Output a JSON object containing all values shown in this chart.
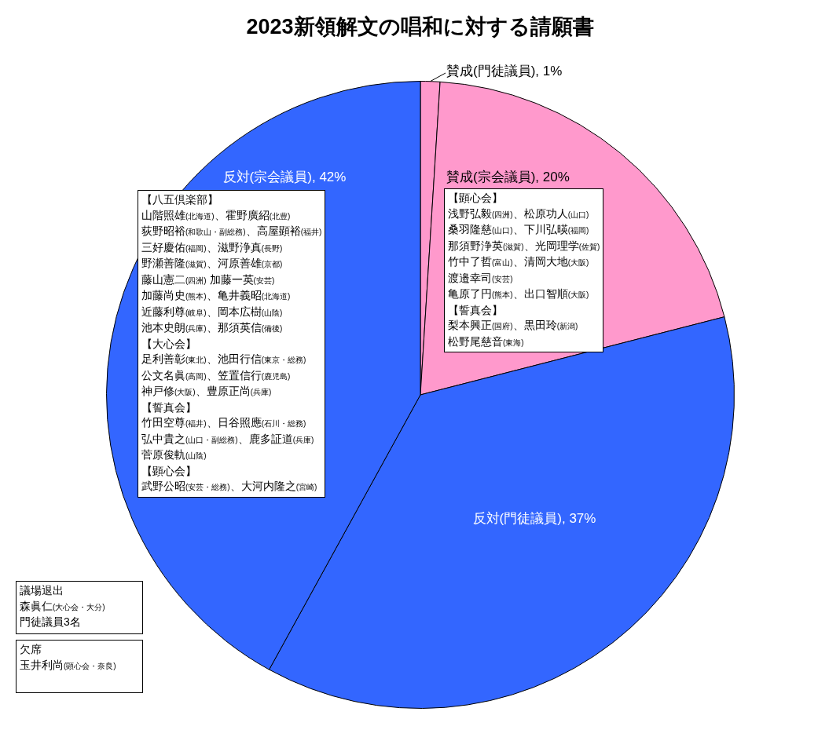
{
  "chart_data": {
    "type": "pie",
    "title": "2023新領解文の唱和に対する請願書",
    "categories": [
      "賛成(門徒議員)",
      "賛成(宗会議員)",
      "反対(門徒議員)",
      "反対(宗会議員)"
    ],
    "values": [
      1,
      20,
      37,
      42
    ],
    "value_labels": [
      "1%",
      "20%",
      "37%",
      "42%"
    ],
    "colors": [
      "#ff99cc",
      "#ff99cc",
      "#3366ff",
      "#3366ff"
    ],
    "legend": false,
    "annotations": [
      "【八五倶楽部】",
      "山階照雄(北海道)、霍野廣紹(北豊)",
      "荻野昭裕(和歌山・副総務)、高屋顕裕(福井)",
      "三好慶佑(福岡)、滋野浄真(長野)",
      "野瀬善隆(滋賀)、河原善雄(京都)",
      "藤山憲二(四洲) 加藤一英(安芸)",
      "加藤尚史(熊本)、亀井義昭(北海道)",
      "近藤利尊(岐阜)、岡本広樹(山陰)",
      "池本史朗(兵庫)、那須英信(備後)",
      "【大心会】",
      "足利善彰(東北)、池田行信(東京・総務)",
      "公文名眞(高岡)、笠置信行(鹿児島)",
      "神戸修(大阪)、豊原正尚(兵庫)",
      "【誓真会】",
      "竹田空尊(福井)、日谷照應(石川・総務)",
      "弘中貴之(山口・副総務)、鹿多証道(兵庫)",
      "菅原俊軌(山陰)",
      "【顕心会】",
      "武野公昭(安芸・総務)、大河内隆之(宮崎)",
      "【顕心会】",
      "浅野弘毅(四洲)、松原功人(山口)",
      "桑羽隆慈(山口)、下川弘暎(福岡)",
      "那須野浄英(滋賀)、光岡理学(佐賀)",
      "竹中了哲(富山)、清岡大地(大阪)",
      "渡邉幸司(安芸)",
      "亀原了円(熊本)、出口智順(大阪)",
      "【誓真会】",
      "梨本興正(国府)、黒田玲(新潟)",
      "松野尾慈音(東海)",
      "議場退出",
      "森眞仁(大心会・大分)",
      "門徒議員3名",
      "欠席",
      "玉井利尚(顕心会・奈良)"
    ]
  }
}
